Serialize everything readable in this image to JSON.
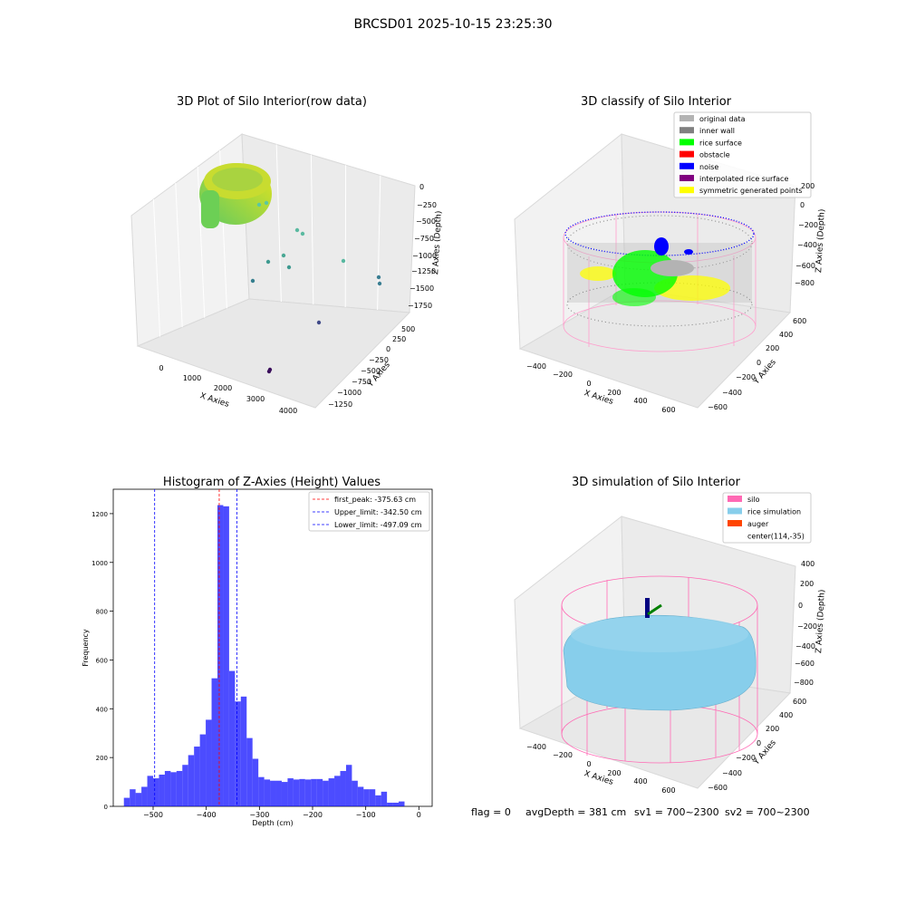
{
  "figure_title": "BRCSD01 2025-10-15 23:25:30",
  "footer": {
    "flag": "flag = 0",
    "avg_depth": "avgDepth = 381 cm",
    "sv1": "sv1 = 700~2300",
    "sv2": "sv2 = 700~2300"
  },
  "colors": {
    "silo": "#ff69b4",
    "rice_simulation": "#87ceeb",
    "auger": "#ff4500",
    "hist_bar": "#0000ff",
    "first_peak_line": "#ff0000",
    "limit_line": "#0000ff"
  },
  "chart_data": [
    {
      "type": "scatter",
      "title": "3D Plot of Silo Interior(row data)",
      "xlabel": "X Axies",
      "ylabel": "Y Axies",
      "zlabel": "Z Axies (Depth)",
      "x_ticks": [
        "0",
        "1000",
        "2000",
        "3000",
        "4000"
      ],
      "y_ticks": [
        "500",
        "250",
        "0",
        "−250",
        "−500",
        "−750",
        "−1000",
        "−1250"
      ],
      "z_ticks": [
        "0",
        "−250",
        "−500",
        "−750",
        "−1000",
        "−1250",
        "−1500",
        "−1750"
      ],
      "xlim": [
        -500,
        4200
      ],
      "ylim": [
        -1300,
        600
      ],
      "zlim": [
        -1800,
        100
      ],
      "grid": true
    },
    {
      "type": "scatter",
      "title": "3D classify of Silo Interior",
      "xlabel": "X Axies",
      "ylabel": "Y Axies",
      "zlabel": "Z Axies (Depth)",
      "x_ticks": [
        "−400",
        "−200",
        "0",
        "200",
        "400",
        "600"
      ],
      "y_ticks": [
        "600",
        "400",
        "200",
        "0",
        "−200",
        "−400",
        "−600"
      ],
      "z_ticks": [
        "200",
        "0",
        "−200",
        "−400",
        "−600",
        "−800"
      ],
      "legend_position": "top-right",
      "legend": [
        {
          "label": "original data",
          "color": "#b3b3b3"
        },
        {
          "label": "inner wall",
          "color": "#808080"
        },
        {
          "label": "rice surface",
          "color": "#00ff00"
        },
        {
          "label": "obstacle",
          "color": "#ff0000"
        },
        {
          "label": "noise",
          "color": "#0000ff"
        },
        {
          "label": "interpolated rice surface",
          "color": "#800080"
        },
        {
          "label": "symmetric generated points",
          "color": "#ffff00"
        }
      ],
      "grid": true
    },
    {
      "type": "bar",
      "title": "Histogram of Z-Axies (Height) Values",
      "xlabel": "Depth (cm)",
      "ylabel": "Frequency",
      "x_ticks": [
        -500,
        -400,
        -300,
        -200,
        -100,
        0
      ],
      "y_ticks": [
        0,
        200,
        400,
        600,
        800,
        1000,
        1200
      ],
      "xlim": [
        -575,
        25
      ],
      "ylim": [
        0,
        1300
      ],
      "bin_start": -555,
      "bin_width": 11,
      "values": [
        35,
        70,
        55,
        80,
        125,
        115,
        130,
        145,
        140,
        145,
        170,
        210,
        245,
        295,
        355,
        525,
        1235,
        1230,
        555,
        430,
        450,
        280,
        195,
        120,
        110,
        105,
        105,
        100,
        115,
        110,
        112,
        110,
        112,
        112,
        105,
        115,
        125,
        145,
        170,
        105,
        80,
        70,
        70,
        45,
        60,
        15,
        15,
        20
      ],
      "reference_lines": [
        {
          "label": "first_peak: -375.63 cm",
          "x": -375.63,
          "color": "#ff0000"
        },
        {
          "label": "Upper_limit: -342.50 cm",
          "x": -342.5,
          "color": "#0000ff"
        },
        {
          "label": "Lower_limit: -497.09 cm",
          "x": -497.09,
          "color": "#0000ff"
        }
      ],
      "legend_position": "top-right"
    },
    {
      "type": "scatter",
      "title": "3D simulation of Silo Interior",
      "xlabel": "X Axies",
      "ylabel": "Y Axies",
      "zlabel": "Z Axies (Depth)",
      "x_ticks": [
        "−400",
        "−200",
        "0",
        "200",
        "400",
        "600"
      ],
      "y_ticks": [
        "600",
        "400",
        "200",
        "0",
        "−200",
        "−400",
        "−600"
      ],
      "z_ticks": [
        "400",
        "200",
        "0",
        "−200",
        "−400",
        "−600",
        "−800"
      ],
      "legend_position": "top-right",
      "legend": [
        {
          "label": "silo",
          "color": "#ff69b4"
        },
        {
          "label": "rice simulation",
          "color": "#87ceeb"
        },
        {
          "label": "auger",
          "color": "#ff4500"
        },
        {
          "label": "center(114,-35)",
          "color": ""
        }
      ],
      "grid": true
    }
  ]
}
